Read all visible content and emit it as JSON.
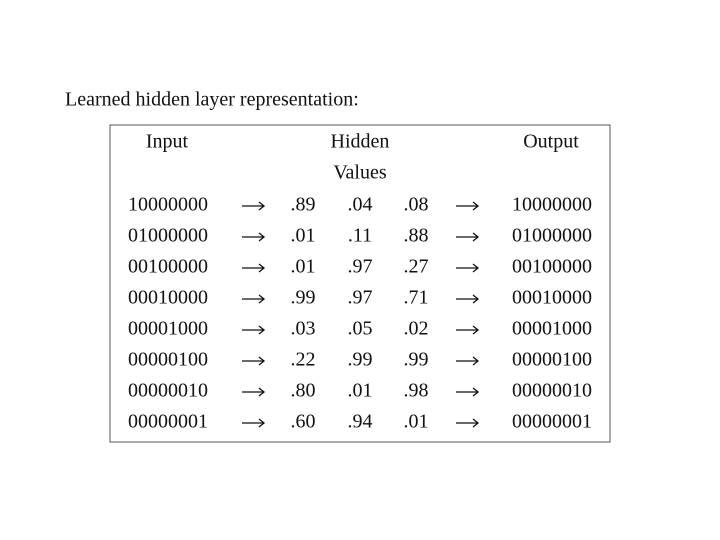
{
  "title": "Learned hidden layer representation:",
  "table": {
    "headers": {
      "input": "Input",
      "hidden": [
        "Hidden",
        "Values"
      ],
      "output": "Output"
    },
    "rows": [
      [
        "10000000",
        ".89",
        ".04",
        ".08",
        "10000000"
      ],
      [
        "01000000",
        ".01",
        ".11",
        ".88",
        "01000000"
      ],
      [
        "00100000",
        ".01",
        ".97",
        ".27",
        "00100000"
      ],
      [
        "00010000",
        ".99",
        ".97",
        ".71",
        "00010000"
      ],
      [
        "00001000",
        ".03",
        ".05",
        ".02",
        "00001000"
      ],
      [
        "00000100",
        ".22",
        ".99",
        ".99",
        "00000100"
      ],
      [
        "00000010",
        ".80",
        ".01",
        ".98",
        "00000010"
      ],
      [
        "00000001",
        ".60",
        ".94",
        ".01",
        "00000001"
      ]
    ]
  }
}
